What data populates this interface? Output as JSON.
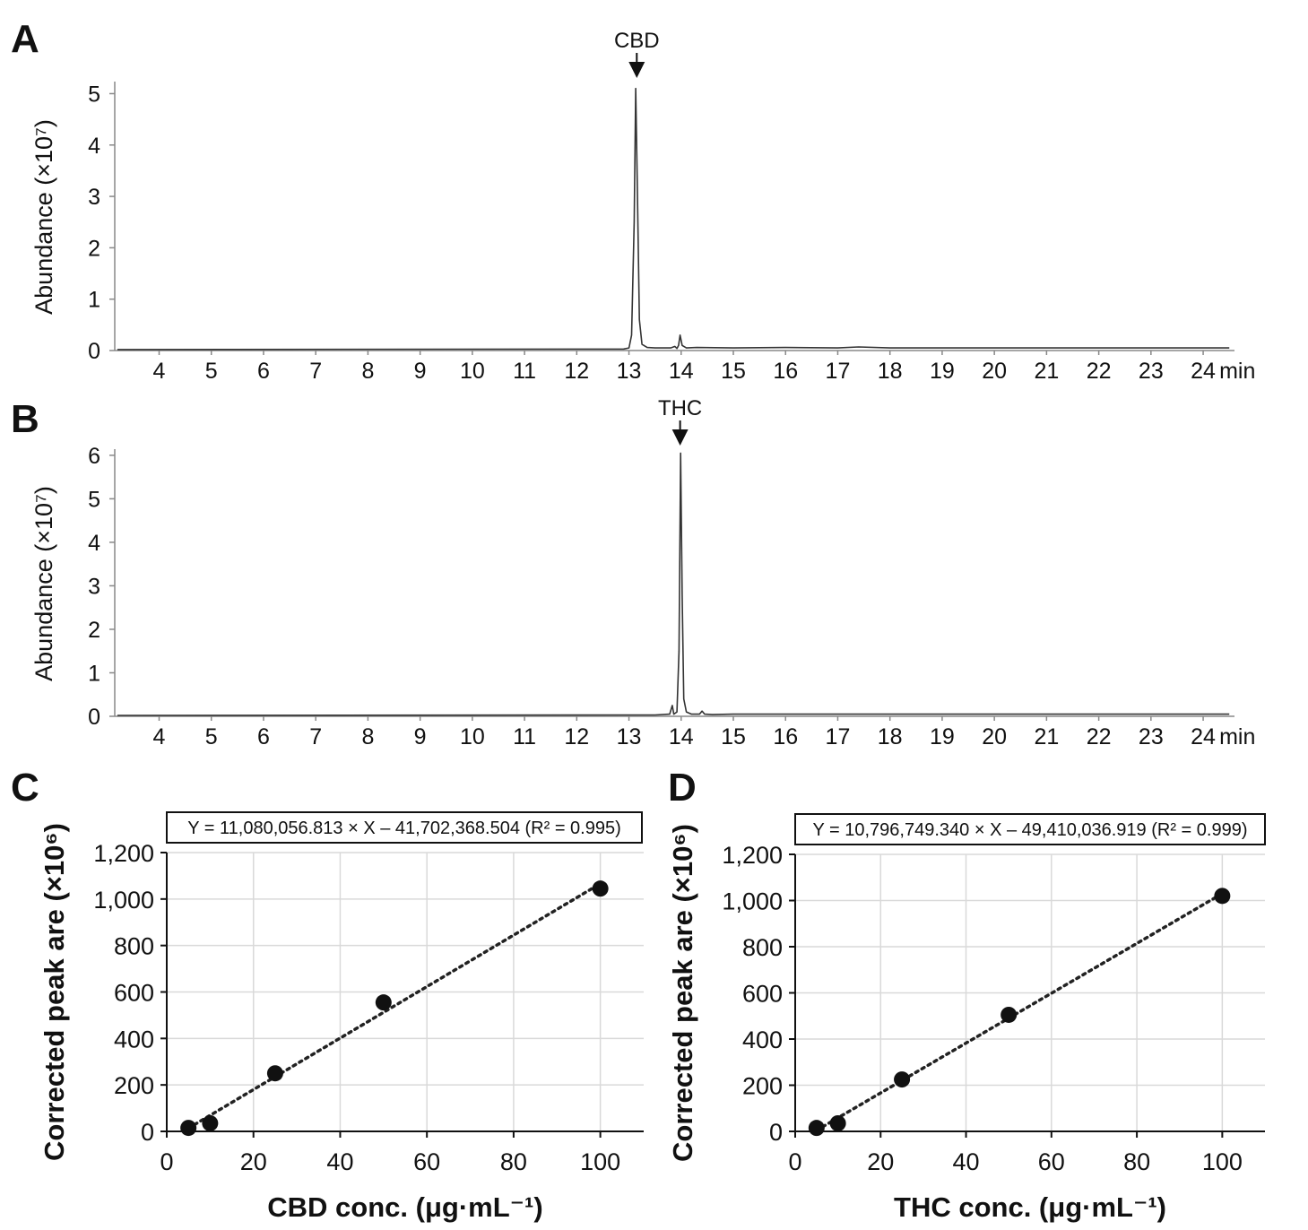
{
  "chart_data": [
    {
      "id": "A",
      "type": "line",
      "panel_label": "A",
      "ylabel": "Abundance (×10⁷)",
      "xunit": "min",
      "xlim": [
        3.15,
        24.6
      ],
      "ylim": [
        0,
        5.2
      ],
      "xticks": [
        4,
        5,
        6,
        7,
        8,
        9,
        10,
        11,
        12,
        13,
        14,
        15,
        16,
        17,
        18,
        19,
        20,
        21,
        22,
        23,
        24
      ],
      "yticks": [
        0,
        1,
        2,
        3,
        4,
        5
      ],
      "series": [
        {
          "x": [
            3.2,
            12.9,
            13.0,
            13.05,
            13.1,
            13.13,
            13.16,
            13.2,
            13.25,
            13.35,
            13.5,
            13.8,
            13.88,
            13.92,
            13.95,
            13.98,
            14.02,
            14.1,
            14.3,
            15.0,
            16.0,
            17.0,
            17.4,
            18.0,
            20.0,
            22.0,
            24.5
          ],
          "y": [
            0.02,
            0.03,
            0.05,
            0.3,
            2.5,
            5.1,
            3.2,
            0.6,
            0.12,
            0.06,
            0.05,
            0.05,
            0.08,
            0.04,
            0.1,
            0.3,
            0.1,
            0.05,
            0.06,
            0.05,
            0.06,
            0.05,
            0.07,
            0.05,
            0.05,
            0.05,
            0.05
          ]
        }
      ],
      "annotations": [
        {
          "text": "CBD",
          "x": 13.15
        }
      ]
    },
    {
      "id": "B",
      "type": "line",
      "panel_label": "B",
      "ylabel": "Abundance (×10⁷)",
      "xunit": "min",
      "xlim": [
        3.15,
        24.6
      ],
      "ylim": [
        0,
        6.1
      ],
      "xticks": [
        4,
        5,
        6,
        7,
        8,
        9,
        10,
        11,
        12,
        13,
        14,
        15,
        16,
        17,
        18,
        19,
        20,
        21,
        22,
        23,
        24
      ],
      "yticks": [
        0,
        1,
        2,
        3,
        4,
        5,
        6
      ],
      "series": [
        {
          "x": [
            3.2,
            13.5,
            13.78,
            13.83,
            13.86,
            13.92,
            13.96,
            13.99,
            14.02,
            14.05,
            14.1,
            14.2,
            14.35,
            14.4,
            14.45,
            14.6,
            15.0,
            16.0,
            18.0,
            20.0,
            22.0,
            24.5
          ],
          "y": [
            0.02,
            0.03,
            0.05,
            0.25,
            0.05,
            0.1,
            1.5,
            6.05,
            2.8,
            0.4,
            0.1,
            0.05,
            0.05,
            0.12,
            0.05,
            0.04,
            0.05,
            0.05,
            0.05,
            0.05,
            0.05,
            0.05
          ]
        }
      ],
      "annotations": [
        {
          "text": "THC",
          "x": 13.98
        }
      ]
    },
    {
      "id": "C",
      "type": "scatter",
      "panel_label": "C",
      "ylabel": "Corrected peak are (×10⁶)",
      "xlabel": "CBD conc. (μg·mL⁻¹)",
      "xlim": [
        0,
        110
      ],
      "ylim": [
        0,
        1200
      ],
      "xticks": [
        0,
        20,
        40,
        60,
        80,
        100
      ],
      "yticks": [
        0,
        200,
        400,
        600,
        800,
        1000,
        1200
      ],
      "ytick_labels": [
        "0",
        "200",
        "400",
        "600",
        "800",
        "1,000",
        "1,200"
      ],
      "grid": true,
      "x": [
        5,
        10,
        25,
        50,
        100
      ],
      "y": [
        15,
        35,
        250,
        555,
        1045
      ],
      "fit": {
        "slope": 11.080056813,
        "intercept": -41.702368504,
        "x_range": [
          5,
          100
        ]
      },
      "equation": "Y = 11,080,056.813 × X – 41,702,368.504 (R² = 0.995)"
    },
    {
      "id": "D",
      "type": "scatter",
      "panel_label": "D",
      "ylabel": "Corrected peak are (×10⁶)",
      "xlabel": "THC conc. (μg·mL⁻¹)",
      "xlim": [
        0,
        110
      ],
      "ylim": [
        0,
        1200
      ],
      "xticks": [
        0,
        20,
        40,
        60,
        80,
        100
      ],
      "yticks": [
        0,
        200,
        400,
        600,
        800,
        1000,
        1200
      ],
      "ytick_labels": [
        "0",
        "200",
        "400",
        "600",
        "800",
        "1,000",
        "1,200"
      ],
      "grid": true,
      "x": [
        5,
        10,
        25,
        50,
        100
      ],
      "y": [
        15,
        35,
        225,
        505,
        1020
      ],
      "fit": {
        "slope": 10.79674934,
        "intercept": -49.410036919,
        "x_range": [
          5,
          100
        ]
      },
      "equation": "Y = 10,796,749.340 × X – 49,410,036.919 (R² = 0.999)"
    }
  ]
}
